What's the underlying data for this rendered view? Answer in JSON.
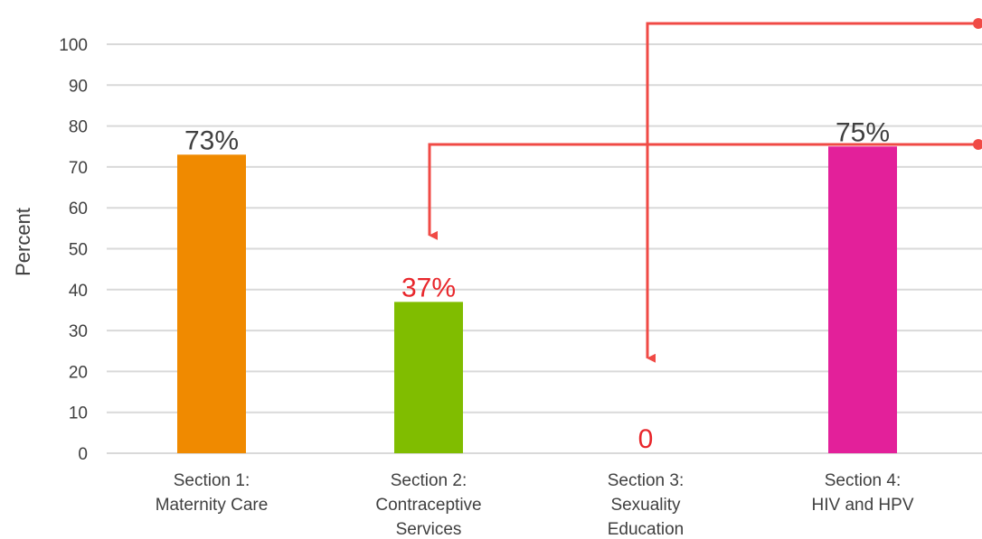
{
  "chart_data": {
    "type": "bar",
    "categories": [
      [
        "Section 1:",
        "Maternity Care"
      ],
      [
        "Section 2:",
        "Contraceptive",
        "Services"
      ],
      [
        "Section 3:",
        "Sexuality",
        "Education"
      ],
      [
        "Section 4:",
        "HIV and HPV"
      ]
    ],
    "values": [
      73,
      37,
      0,
      75
    ],
    "data_labels": [
      "73%",
      "37%",
      "0",
      "75%"
    ],
    "bar_colors": [
      "#f08a00",
      "#80bd00",
      "#cccccc",
      "#e3209a"
    ],
    "label_colors": [
      "#404040",
      "#e8262b",
      "#e8262b",
      "#404040"
    ],
    "ylabel": "Percent",
    "xlabel": "",
    "ylim": [
      0,
      100
    ],
    "yticks": [
      0,
      10,
      20,
      30,
      40,
      50,
      60,
      70,
      80,
      90,
      100
    ],
    "grid": true,
    "grid_color": "#d9d9d9",
    "annotation_color": "#f04a45",
    "annotations": [
      {
        "type": "arrow",
        "from": "off-chart top-right",
        "to_category": "Section 3:",
        "to_value": 25
      },
      {
        "type": "arrow",
        "from": "off-chart top-right",
        "to_category": "Section 2:",
        "to_value": 55
      }
    ]
  }
}
